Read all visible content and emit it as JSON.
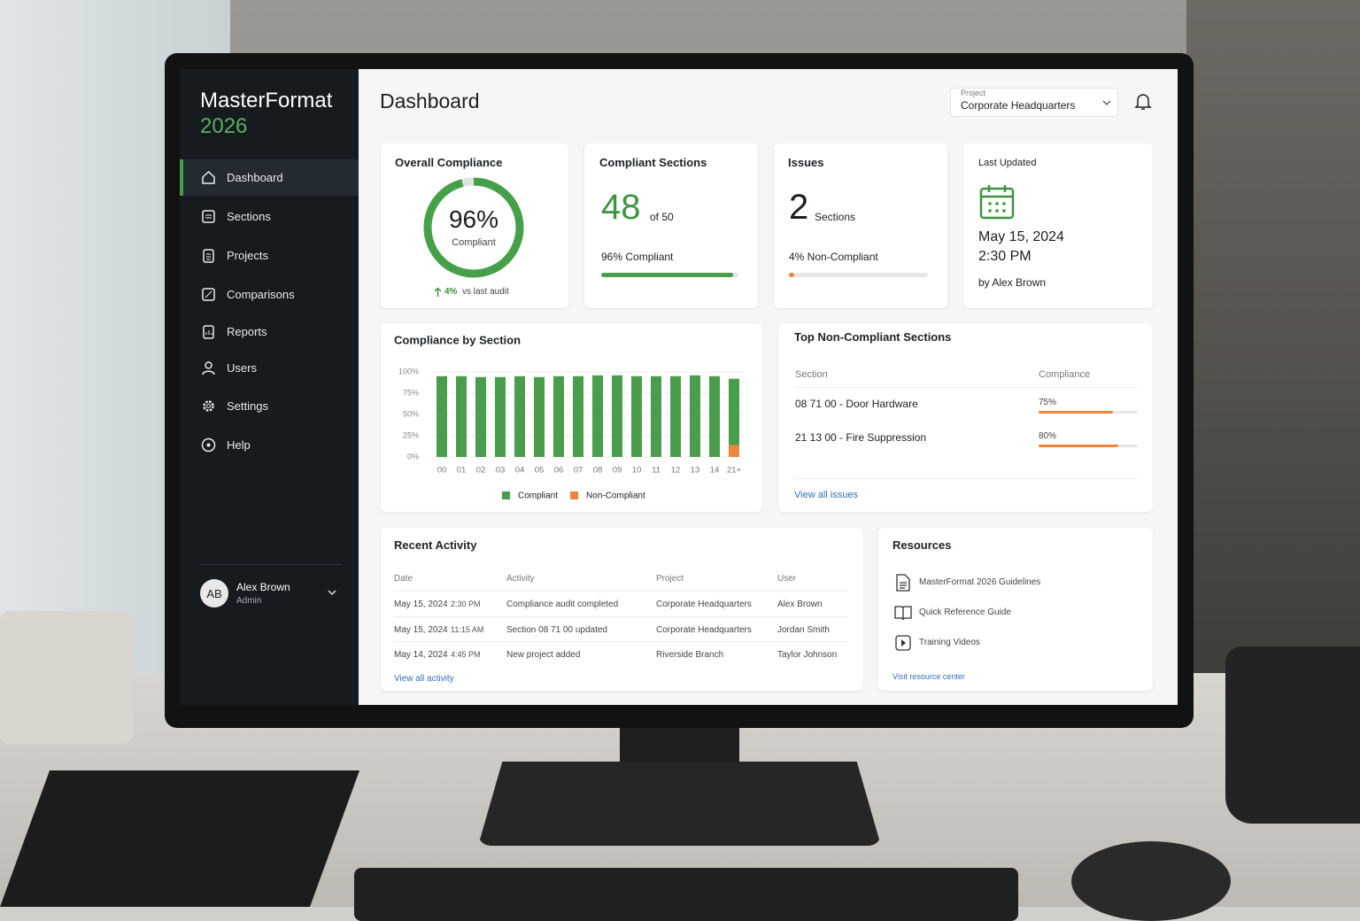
{
  "sidebar": {
    "brand": "MasterFormat",
    "year": "2026",
    "nav": [
      "Dashboard",
      "Sections",
      "Projects",
      "Comparisons",
      "Reports",
      "Users",
      "Settings",
      "Help"
    ],
    "user": {
      "initials": "AB",
      "name": "Alex Brown",
      "role": "Admin"
    }
  },
  "header": {
    "title": "Dashboard",
    "project_label": "Project",
    "project": "Corporate Headquarters"
  },
  "cards": {
    "overall": {
      "title": "Overall Compliance",
      "percent": 96,
      "percent_label": "96%",
      "caption": "Compliant",
      "change": "4%",
      "change_text": "vs last audit"
    },
    "sections": {
      "title": "Compliant Sections",
      "count": "48",
      "of": "of 50",
      "status": "96% Compliant",
      "progress": 96
    },
    "issues": {
      "title": "Issues",
      "count": "2",
      "unit": "Sections",
      "status": "4% Non-Compliant",
      "progress": 4
    },
    "updated": {
      "title": "Last Updated",
      "date": "May 15, 2024",
      "time": "2:30 PM",
      "by": "by Alex Brown"
    }
  },
  "chart_data": {
    "type": "bar",
    "title": "Compliance by Section",
    "categories": [
      "00",
      "01",
      "02",
      "03",
      "04",
      "05",
      "06",
      "07",
      "08",
      "09",
      "10",
      "11",
      "12",
      "13",
      "14",
      "21+"
    ],
    "series": [
      {
        "name": "Compliant",
        "color": "#4a9d4c",
        "values": [
          95,
          95,
          94,
          94,
          95,
          94,
          95,
          95,
          96,
          96,
          95,
          95,
          95,
          96,
          95,
          78
        ]
      },
      {
        "name": "Non-Compliant",
        "color": "#f0843c",
        "values": [
          0,
          0,
          0,
          0,
          0,
          0,
          0,
          0,
          0,
          0,
          0,
          0,
          0,
          0,
          0,
          14
        ]
      }
    ],
    "ylim": [
      0,
      100
    ],
    "yticks": [
      {
        "value": 0,
        "label": "0%"
      },
      {
        "value": 25,
        "label": "25%"
      },
      {
        "value": 50,
        "label": "50%"
      },
      {
        "value": 75,
        "label": "75%"
      },
      {
        "value": 100,
        "label": "100%"
      }
    ],
    "grid": true,
    "legend": "bottom"
  },
  "top_non_compliant": {
    "title": "Top Non-Compliant Sections",
    "columns": [
      "Section",
      "Compliance"
    ],
    "rows": [
      {
        "section": "08 71 00 - Door Hardware",
        "value": 75,
        "label": "75%"
      },
      {
        "section": "21 13 00 - Fire Suppression",
        "value": 80,
        "label": "80%"
      }
    ],
    "link": "View all issues"
  },
  "activity": {
    "title": "Recent Activity",
    "columns": [
      "Date",
      "Activity",
      "Project",
      "User"
    ],
    "rows": [
      [
        "May 15, 2024",
        "2:30 PM",
        "Compliance audit completed",
        "Corporate Headquarters",
        "Alex Brown"
      ],
      [
        "May 15, 2024",
        "11:15 AM",
        "Section 08 71 00 updated",
        "Corporate Headquarters",
        "Jordan Smith"
      ],
      [
        "May 14, 2024",
        "4:45 PM",
        "New project added",
        "Riverside Branch",
        "Taylor Johnson"
      ]
    ],
    "link": "View all activity"
  },
  "resources": {
    "title": "Resources",
    "items": [
      "MasterFormat 2026 Guidelines",
      "Quick Reference Guide",
      "Training Videos"
    ],
    "link": "Visit resource center"
  }
}
